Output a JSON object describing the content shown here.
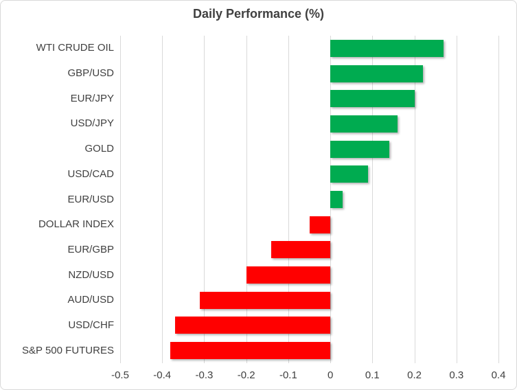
{
  "chart_data": {
    "type": "bar",
    "orientation": "horizontal",
    "title": "Daily Performance (%)",
    "categories": [
      "WTI CRUDE OIL",
      "GBP/USD",
      "EUR/JPY",
      "USD/JPY",
      "GOLD",
      "USD/CAD",
      "EUR/USD",
      "DOLLAR INDEX",
      "EUR/GBP",
      "NZD/USD",
      "AUD/USD",
      "USD/CHF",
      "S&P 500 FUTURES"
    ],
    "values": [
      0.27,
      0.22,
      0.2,
      0.16,
      0.14,
      0.09,
      0.03,
      -0.05,
      -0.14,
      -0.2,
      -0.31,
      -0.37,
      -0.38
    ],
    "xlabel": "",
    "ylabel": "",
    "xlim": [
      -0.5,
      0.4
    ],
    "x_ticks": [
      "-0.5",
      "-0.4",
      "-0.3",
      "-0.2",
      "-0.1",
      "0",
      "0.1",
      "0.2",
      "0.3",
      "0.4"
    ],
    "grid": true,
    "legend": false,
    "colors": {
      "positive": "#00AB50",
      "negative": "#FF0000",
      "gridline": "#D9D9D9",
      "text": "#404040",
      "border": "#D9D9D9",
      "background": "#FFFFFF"
    }
  }
}
